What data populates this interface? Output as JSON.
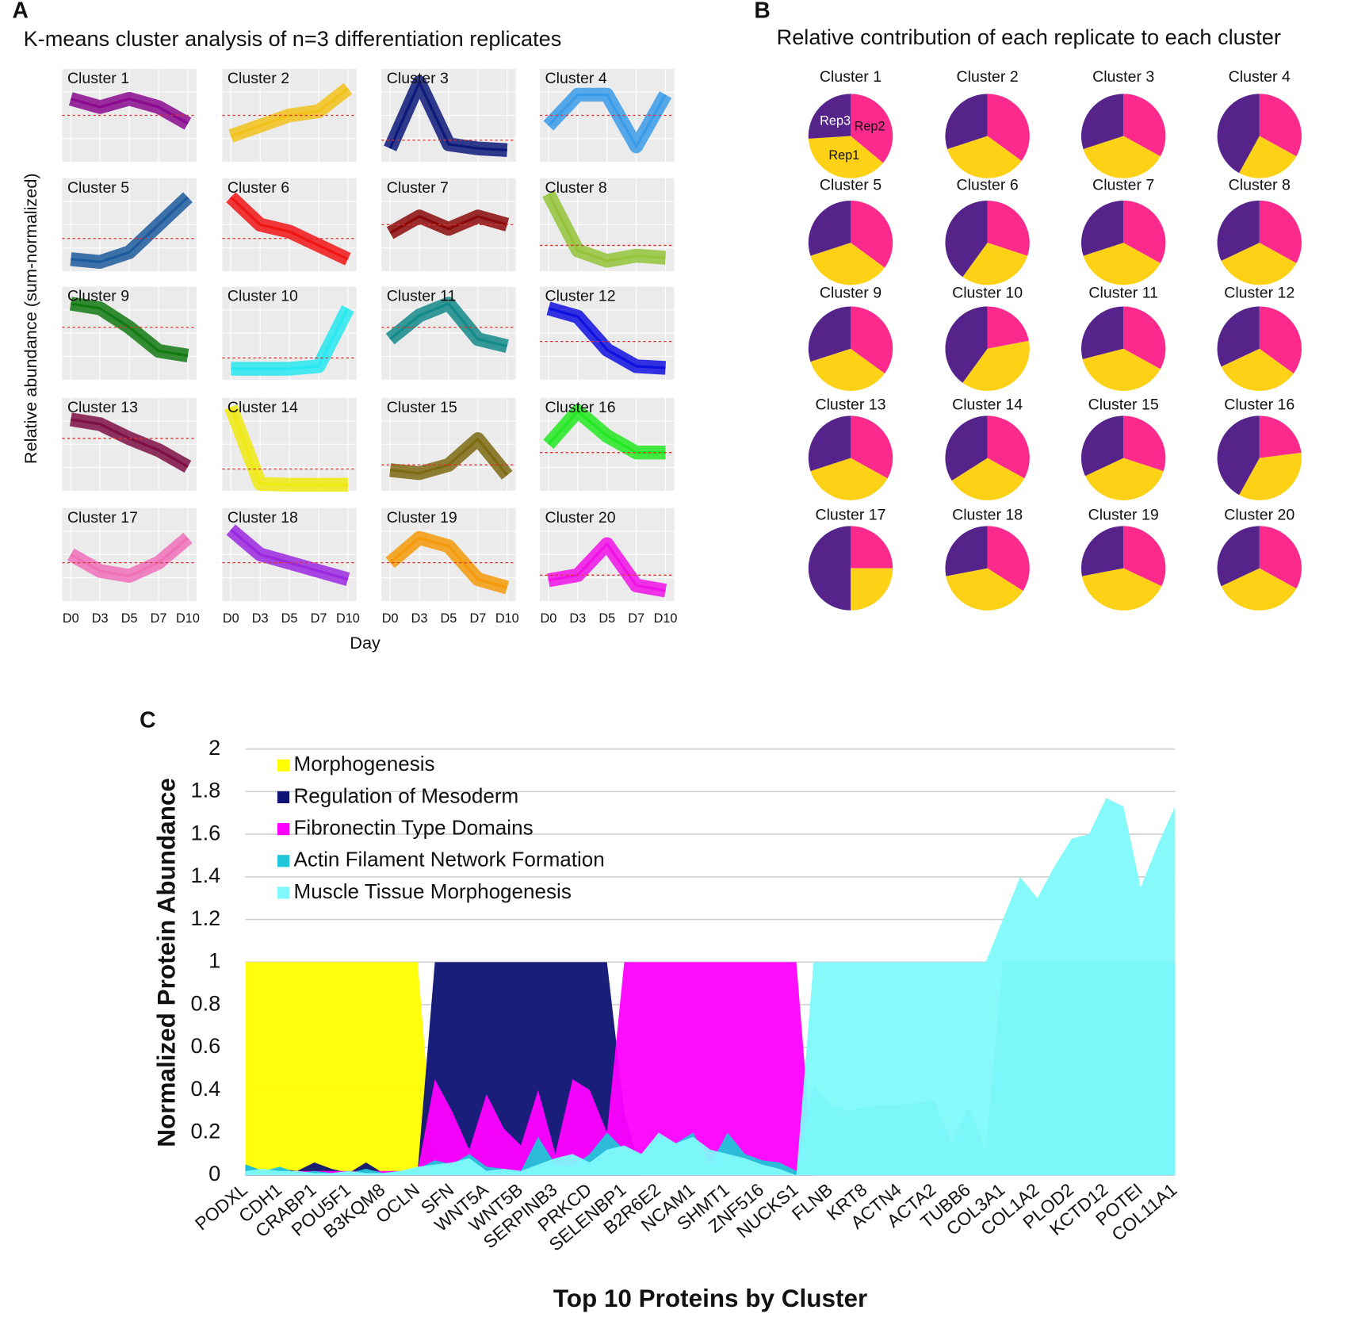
{
  "chart_data": [
    {
      "type": "line_grid",
      "panel_label": "A",
      "title": "K-means cluster analysis of n=3 differentiation replicates",
      "xlabel": "Day",
      "ylabel": "Relative abundance (sum-normalized)",
      "categories": [
        "D0",
        "D3",
        "D5",
        "D7",
        "D10"
      ],
      "reference": 0.2,
      "reference_color": "#e03030",
      "panels": [
        {
          "name": "Cluster 1",
          "color": "#8b0a8f",
          "ylim": [
            0.1,
            0.3
          ],
          "values": [
            0.24,
            0.22,
            0.24,
            0.22,
            0.18
          ]
        },
        {
          "name": "Cluster 2",
          "color": "#f2c21b",
          "ylim": [
            0,
            0.4
          ],
          "values": [
            0.1,
            0.15,
            0.2,
            0.22,
            0.33
          ]
        },
        {
          "name": "Cluster 3",
          "color": "#0d1a7a",
          "ylim": [
            0,
            1
          ],
          "values": [
            0.1,
            0.9,
            0.15,
            0.1,
            0.08
          ]
        },
        {
          "name": "Cluster 4",
          "color": "#3a9be8",
          "ylim": [
            0,
            0.4
          ],
          "values": [
            0.15,
            0.3,
            0.3,
            0.05,
            0.3
          ]
        },
        {
          "name": "Cluster 5",
          "color": "#1d5b9e",
          "ylim": [
            0,
            0.6
          ],
          "values": [
            0.05,
            0.03,
            0.1,
            0.3,
            0.5
          ]
        },
        {
          "name": "Cluster 6",
          "color": "#f01515",
          "ylim": [
            0,
            0.6
          ],
          "values": [
            0.5,
            0.3,
            0.25,
            0.15,
            0.05
          ]
        },
        {
          "name": "Cluster 7",
          "color": "#8a0a0a",
          "ylim": [
            0.1,
            0.3
          ],
          "values": [
            0.18,
            0.22,
            0.19,
            0.22,
            0.2
          ]
        },
        {
          "name": "Cluster 8",
          "color": "#94c43a",
          "ylim": [
            0,
            0.8
          ],
          "values": [
            0.7,
            0.15,
            0.05,
            0.1,
            0.08
          ]
        },
        {
          "name": "Cluster 9",
          "color": "#127a12",
          "ylim": [
            0,
            0.35
          ],
          "values": [
            0.3,
            0.28,
            0.2,
            0.1,
            0.08
          ]
        },
        {
          "name": "Cluster 10",
          "color": "#28e8f0",
          "ylim": [
            0,
            1
          ],
          "values": [
            0.07,
            0.07,
            0.07,
            0.1,
            0.8
          ]
        },
        {
          "name": "Cluster 11",
          "color": "#148a8a",
          "ylim": [
            0,
            0.35
          ],
          "values": [
            0.15,
            0.25,
            0.3,
            0.15,
            0.12
          ]
        },
        {
          "name": "Cluster 12",
          "color": "#1010e0",
          "ylim": [
            0,
            0.5
          ],
          "values": [
            0.4,
            0.35,
            0.15,
            0.05,
            0.04
          ]
        },
        {
          "name": "Cluster 13",
          "color": "#7d0f45",
          "ylim": [
            0,
            0.35
          ],
          "values": [
            0.28,
            0.26,
            0.2,
            0.15,
            0.08
          ]
        },
        {
          "name": "Cluster 14",
          "color": "#f0ea10",
          "ylim": [
            0,
            1
          ],
          "values": [
            0.95,
            0.02,
            0.01,
            0.01,
            0.01
          ]
        },
        {
          "name": "Cluster 15",
          "color": "#7d6a12",
          "ylim": [
            0,
            0.8
          ],
          "values": [
            0.15,
            0.12,
            0.2,
            0.45,
            0.1
          ]
        },
        {
          "name": "Cluster 16",
          "color": "#22e822",
          "ylim": [
            0,
            0.5
          ],
          "values": [
            0.25,
            0.45,
            0.3,
            0.2,
            0.2
          ]
        },
        {
          "name": "Cluster 17",
          "color": "#f070b8",
          "ylim": [
            0,
            0.5
          ],
          "values": [
            0.25,
            0.15,
            0.12,
            0.2,
            0.35
          ]
        },
        {
          "name": "Cluster 18",
          "color": "#9a28e0",
          "ylim": [
            0,
            0.5
          ],
          "values": [
            0.4,
            0.25,
            0.2,
            0.15,
            0.1
          ]
        },
        {
          "name": "Cluster 19",
          "color": "#f59a0a",
          "ylim": [
            0,
            0.5
          ],
          "values": [
            0.2,
            0.35,
            0.3,
            0.1,
            0.05
          ]
        },
        {
          "name": "Cluster 20",
          "color": "#f010e8",
          "ylim": [
            0,
            0.8
          ],
          "values": [
            0.15,
            0.2,
            0.5,
            0.1,
            0.05
          ]
        }
      ]
    },
    {
      "type": "pie_grid",
      "panel_label": "B",
      "title": "Relative contribution of each replicate to each cluster",
      "series_names": [
        "Rep1",
        "Rep2",
        "Rep3"
      ],
      "colors": [
        "#fcd116",
        "#fc2a8c",
        "#55238a"
      ],
      "panels": [
        {
          "name": "Cluster 1",
          "values": [
            38,
            36,
            26
          ]
        },
        {
          "name": "Cluster 2",
          "values": [
            35,
            35,
            30
          ]
        },
        {
          "name": "Cluster 3",
          "values": [
            37,
            33,
            30
          ]
        },
        {
          "name": "Cluster 4",
          "values": [
            25,
            33,
            42
          ]
        },
        {
          "name": "Cluster 5",
          "values": [
            35,
            35,
            30
          ]
        },
        {
          "name": "Cluster 6",
          "values": [
            30,
            30,
            40
          ]
        },
        {
          "name": "Cluster 7",
          "values": [
            37,
            33,
            30
          ]
        },
        {
          "name": "Cluster 8",
          "values": [
            35,
            33,
            32
          ]
        },
        {
          "name": "Cluster 9",
          "values": [
            35,
            35,
            30
          ]
        },
        {
          "name": "Cluster 10",
          "values": [
            38,
            22,
            40
          ]
        },
        {
          "name": "Cluster 11",
          "values": [
            38,
            33,
            29
          ]
        },
        {
          "name": "Cluster 12",
          "values": [
            33,
            35,
            32
          ]
        },
        {
          "name": "Cluster 13",
          "values": [
            37,
            33,
            30
          ]
        },
        {
          "name": "Cluster 14",
          "values": [
            33,
            33,
            34
          ]
        },
        {
          "name": "Cluster 15",
          "values": [
            38,
            30,
            32
          ]
        },
        {
          "name": "Cluster 16",
          "values": [
            35,
            23,
            42
          ]
        },
        {
          "name": "Cluster 17",
          "values": [
            25,
            25,
            50
          ]
        },
        {
          "name": "Cluster 18",
          "values": [
            38,
            34,
            28
          ]
        },
        {
          "name": "Cluster 19",
          "values": [
            40,
            32,
            28
          ]
        },
        {
          "name": "Cluster 20",
          "values": [
            35,
            33,
            32
          ]
        }
      ]
    },
    {
      "type": "area",
      "panel_label": "C",
      "xlabel": "Top 10 Proteins by Cluster",
      "ylabel": "Normalized Protein Abundance",
      "ylim": [
        0,
        2
      ],
      "yticks": [
        0,
        0.2,
        0.4,
        0.6,
        0.8,
        1,
        1.2,
        1.4,
        1.6,
        1.8,
        2
      ],
      "grid": true,
      "categories": [
        "PODXL",
        null,
        "CDH1",
        null,
        "CRABP1",
        null,
        "POU5F1",
        null,
        "B3KQM8",
        null,
        "OCLN",
        null,
        "SFN",
        null,
        "WNT5A",
        null,
        "WNT5B",
        null,
        "SERPINB3",
        null,
        "PRKCD",
        null,
        "SELENBP1",
        null,
        "B2R6E2",
        null,
        "NCAM1",
        null,
        "SHMT1",
        null,
        "ZNF516",
        null,
        "NUCKS1",
        null,
        "FLNB",
        null,
        "KRT8",
        null,
        "ACTN4",
        null,
        "ACTA2",
        null,
        "TUBB6",
        null,
        "COL3A1",
        null,
        "COL1A2",
        null,
        "PLOD2",
        null,
        "KCTD12",
        null,
        "POTEI",
        null,
        "COL11A1"
      ],
      "series": [
        {
          "name": "Morphogenesis",
          "color": "#ffff00",
          "values": [
            1,
            1,
            1,
            1,
            1,
            1,
            1,
            1,
            1,
            1,
            1,
            0,
            0,
            0,
            0,
            0,
            0,
            0,
            0,
            0,
            0,
            0,
            0,
            0,
            0,
            0,
            0,
            0,
            0,
            0,
            0,
            0,
            0,
            0,
            0,
            0,
            0,
            0,
            0,
            0,
            0,
            0,
            0,
            0,
            0,
            0,
            0,
            0,
            0,
            0,
            0,
            0,
            0,
            0,
            0
          ]
        },
        {
          "name": "Regulation of Mesoderm",
          "color": "#0d1273",
          "values": [
            0.05,
            0.02,
            0.03,
            0.02,
            0.06,
            0.03,
            0.01,
            0.06,
            0.01,
            0.01,
            0.02,
            1,
            1,
            1,
            1,
            1,
            1,
            1,
            1,
            1,
            1,
            1,
            0.3,
            0,
            0,
            0,
            0,
            0,
            0,
            0,
            0,
            0,
            0,
            0,
            0,
            0,
            0,
            0,
            0,
            0,
            0,
            0,
            0,
            0,
            0,
            0,
            0,
            0,
            0,
            0,
            0,
            0,
            0,
            0,
            0
          ]
        },
        {
          "name": "Fibronectin Type Domains",
          "color": "#ff00ff",
          "values": [
            0.02,
            0.02,
            0.02,
            0.02,
            0.02,
            0.02,
            0.02,
            0.02,
            0.02,
            0.02,
            0.02,
            0.45,
            0.3,
            0.12,
            0.38,
            0.22,
            0.14,
            0.4,
            0.1,
            0.45,
            0.4,
            0.2,
            1,
            1,
            1,
            1,
            1,
            1,
            1,
            1,
            1,
            1,
            1,
            0,
            0,
            0,
            0,
            0,
            0,
            0,
            0,
            0,
            0,
            0,
            0,
            0,
            0,
            0,
            0,
            0,
            0,
            0,
            0,
            0,
            0
          ]
        },
        {
          "name": "Actin Filament Network Formation",
          "color": "#21c6d8",
          "values": [
            0.05,
            0.02,
            0.04,
            0.01,
            0.02,
            0.01,
            0.01,
            0.03,
            0.01,
            0.02,
            0.03,
            0.07,
            0.05,
            0.1,
            0.04,
            0.03,
            0.02,
            0.18,
            0.05,
            0.04,
            0.1,
            0.2,
            0.12,
            0.1,
            0.18,
            0.15,
            0.2,
            0.05,
            0.2,
            0.1,
            0.07,
            0.06,
            0.02,
            0.42,
            0.33,
            0.3,
            0.32,
            0.33,
            0.33,
            0.34,
            0.35,
            0.15,
            0.32,
            0.12,
            1,
            1,
            1,
            1,
            1,
            1,
            1,
            1,
            1,
            1,
            1
          ]
        },
        {
          "name": "Muscle Tissue Morphogenesis",
          "color": "#7ff9fb",
          "values": [
            0.02,
            0.03,
            0.02,
            0.02,
            0.01,
            0.01,
            0.02,
            0.01,
            0.01,
            0.02,
            0.04,
            0.05,
            0.06,
            0.08,
            0.02,
            0.03,
            0.02,
            0.05,
            0.08,
            0.1,
            0.06,
            0.12,
            0.14,
            0.1,
            0.2,
            0.15,
            0.18,
            0.12,
            0.1,
            0.08,
            0.05,
            0.03,
            0,
            1,
            1,
            1,
            1,
            1,
            1,
            1,
            1,
            1,
            1,
            1,
            1.2,
            1.4,
            1.3,
            1.45,
            1.58,
            1.6,
            1.77,
            1.73,
            1.35,
            1.55,
            1.73
          ]
        }
      ]
    }
  ]
}
